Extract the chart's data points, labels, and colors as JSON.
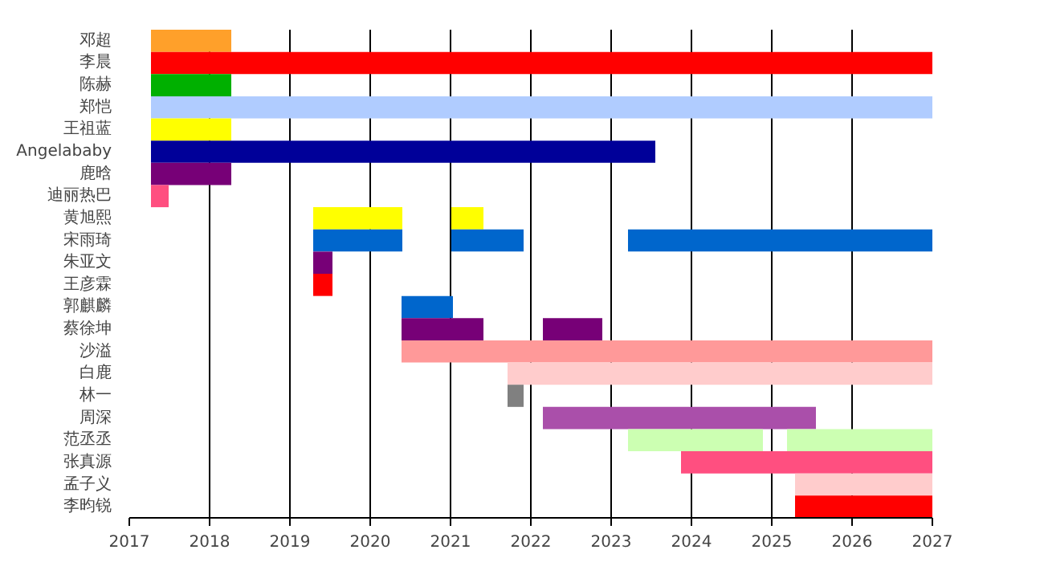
{
  "chart_data": {
    "type": "bar",
    "orientation": "horizontal",
    "categories": [
      "邓超",
      "李晨",
      "陈赫",
      "郑恺",
      "王祖蓝",
      "Angelababy",
      "鹿晗",
      "迪丽热巴",
      "黄旭熙",
      "宋雨琦",
      "朱亚文",
      "王彦霖",
      "郭麒麟",
      "蔡徐坤",
      "沙溢",
      "白鹿",
      "林一",
      "周深",
      "范丞丞",
      "张真源",
      "孟子义",
      "李昀锐"
    ],
    "series": [
      {
        "base": [
          2017.27,
          2017.27,
          2017.27,
          2017.27,
          2017.27,
          2017.27,
          2017.27,
          2017.27,
          2019.29,
          2019.29,
          2019.29,
          2019.29,
          2020.39,
          2020.39,
          2020.39,
          2021.71,
          2021.71,
          2022.15,
          2023.21,
          2023.87,
          2025.29,
          2025.29
        ],
        "values": [
          1.0,
          9.73,
          1.0,
          9.73,
          1.0,
          6.28,
          1.0,
          0.22,
          1.11,
          1.11,
          0.24,
          0.24,
          0.64,
          1.02,
          6.61,
          5.29,
          0.2,
          3.4,
          1.68,
          3.13,
          1.71,
          1.71
        ],
        "colors": [
          "#ffa02a",
          "#ff0000",
          "#00b000",
          "#b0ccff",
          "#ffff00",
          "#000099",
          "#770077",
          "#ff4f80",
          "#ffff00",
          "#0066cc",
          "#770077",
          "#ff0000",
          "#0066cc",
          "#770077",
          "#ff9999",
          "#ffcccc",
          "#808080",
          "#aa4faa",
          "#ccffb2",
          "#ff4f80",
          "#ffcccc",
          "#ff0000"
        ]
      },
      {
        "base": [
          null,
          null,
          null,
          null,
          null,
          null,
          null,
          null,
          2021.01,
          2021.01,
          null,
          null,
          null,
          2022.15,
          null,
          null,
          null,
          null,
          2025.19,
          null,
          null,
          null
        ],
        "values": [
          null,
          null,
          null,
          null,
          null,
          null,
          null,
          null,
          0.4,
          0.9,
          null,
          null,
          null,
          0.74,
          null,
          null,
          null,
          null,
          1.81,
          null,
          null,
          null
        ],
        "colors": [
          null,
          null,
          null,
          null,
          null,
          null,
          null,
          null,
          "#ffff00",
          "#0066cc",
          null,
          null,
          null,
          "#770077",
          null,
          null,
          null,
          null,
          "#ccffb2",
          null,
          null,
          null
        ]
      },
      {
        "base": [
          null,
          null,
          null,
          null,
          null,
          null,
          null,
          null,
          null,
          2023.21,
          null,
          null,
          null,
          null,
          null,
          null,
          null,
          null,
          null,
          null,
          null,
          null
        ],
        "values": [
          null,
          null,
          null,
          null,
          null,
          null,
          null,
          null,
          null,
          3.79,
          null,
          null,
          null,
          null,
          null,
          null,
          null,
          null,
          null,
          null,
          null,
          null
        ],
        "colors": [
          null,
          null,
          null,
          null,
          null,
          null,
          null,
          null,
          null,
          "#0066cc",
          null,
          null,
          null,
          null,
          null,
          null,
          null,
          null,
          null,
          null,
          null,
          null
        ]
      }
    ],
    "xlim": [
      2017,
      2027
    ],
    "xticks": [
      2017,
      2018,
      2019,
      2020,
      2021,
      2022,
      2023,
      2024,
      2025,
      2026,
      2027
    ],
    "grid": "x"
  }
}
